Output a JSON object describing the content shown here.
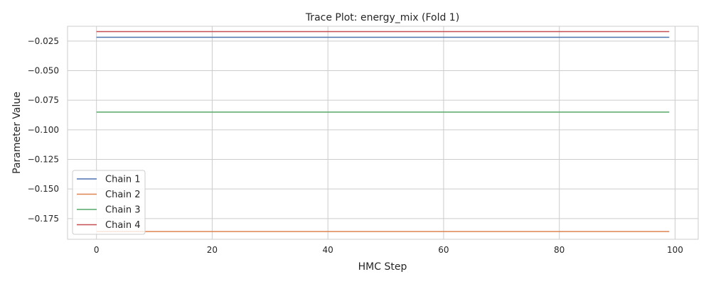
{
  "chart_data": {
    "type": "line",
    "title": "Trace Plot: energy_mix (Fold 1)",
    "xlabel": "HMC Step",
    "ylabel": "Parameter Value",
    "xlim": [
      -5,
      104
    ],
    "ylim": [
      -0.1925,
      -0.0125
    ],
    "x_ticks": [
      0,
      20,
      40,
      60,
      80,
      100
    ],
    "x_tick_labels": [
      "0",
      "20",
      "40",
      "60",
      "80",
      "100"
    ],
    "y_ticks": [
      -0.025,
      -0.05,
      -0.075,
      -0.1,
      -0.125,
      -0.15,
      -0.175
    ],
    "y_tick_labels": [
      "−0.025",
      "−0.050",
      "−0.075",
      "−0.100",
      "−0.125",
      "−0.150",
      "−0.175"
    ],
    "grid": true,
    "legend_position": "lower-left",
    "x": [
      0,
      99
    ],
    "series": [
      {
        "name": "Chain 1",
        "color": "#4c72b0",
        "values": [
          -0.0218,
          -0.0218
        ]
      },
      {
        "name": "Chain 2",
        "color": "#dd8452",
        "values": [
          -0.186,
          -0.186
        ]
      },
      {
        "name": "Chain 3",
        "color": "#55a868",
        "values": [
          -0.085,
          -0.085
        ]
      },
      {
        "name": "Chain 4",
        "color": "#c44e52",
        "values": [
          -0.017,
          -0.017
        ]
      }
    ]
  }
}
